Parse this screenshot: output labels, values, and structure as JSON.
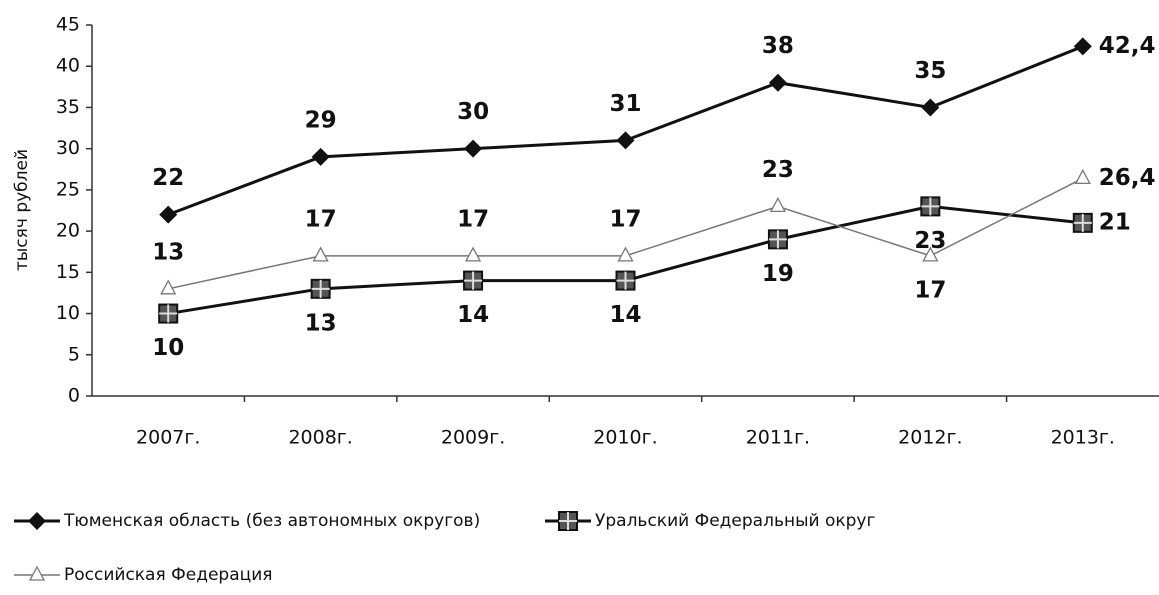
{
  "chart_data": {
    "type": "line",
    "ylabel": "тысяч рублей",
    "categories": [
      "2007г.",
      "2008г.",
      "2009г.",
      "2010г.",
      "2011г.",
      "2012г.",
      "2013г."
    ],
    "series": [
      {
        "name": "Тюменская область (без автономных округов)",
        "color": "#111111",
        "marker": "diamond",
        "values": [
          22,
          29,
          30,
          31,
          38,
          35,
          42.4
        ],
        "value_labels": [
          "22",
          "29",
          "30",
          "31",
          "38",
          "35",
          "42,4"
        ]
      },
      {
        "name": "Уральский Федеральный округ",
        "color": "#111111",
        "marker": "square",
        "values": [
          10,
          13,
          14,
          14,
          19,
          23,
          21
        ],
        "value_labels": [
          "10",
          "13",
          "14",
          "14",
          "19",
          "23",
          "21"
        ]
      },
      {
        "name": "Российская Федерация",
        "color": "#777777",
        "marker": "triangle",
        "values": [
          13,
          17,
          17,
          17,
          23,
          17,
          26.4
        ],
        "value_labels": [
          "13",
          "17",
          "17",
          "17",
          "23",
          "17",
          "26,4"
        ]
      }
    ],
    "ylim": [
      0,
      45
    ],
    "yticks": [
      0,
      5,
      10,
      15,
      20,
      25,
      30,
      35,
      40,
      45
    ]
  }
}
